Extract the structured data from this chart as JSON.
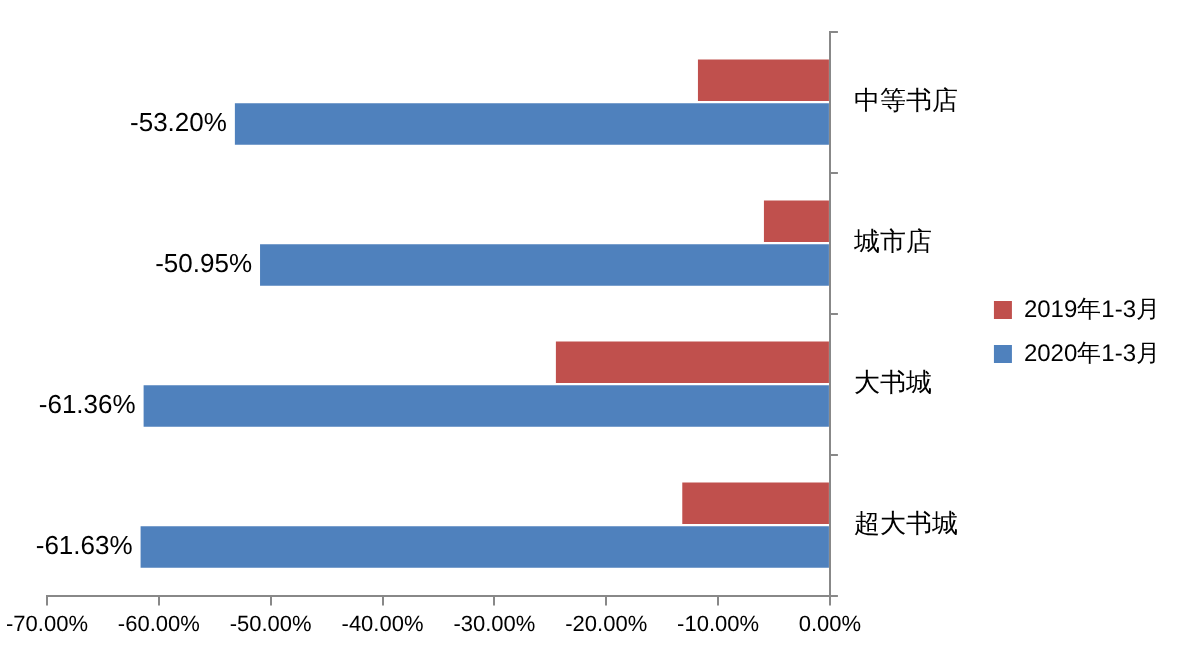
{
  "chart_data": {
    "type": "bar",
    "orientation": "horizontal",
    "categories": [
      "中等书店",
      "城市店",
      "大书城",
      "超大书城"
    ],
    "series": [
      {
        "name": "2019年1-3月",
        "color": "#c0504d",
        "values": [
          -11.8,
          -5.9,
          -24.5,
          -13.2
        ]
      },
      {
        "name": "2020年1-3月",
        "color": "#4f81bd",
        "values": [
          -53.2,
          -50.95,
          -61.36,
          -61.63
        ],
        "value_labels": [
          "-53.20%",
          "-50.95%",
          "-61.36%",
          "-61.63%"
        ]
      }
    ],
    "xlim": [
      -70,
      0
    ],
    "xticks": [
      {
        "value": -70,
        "label": "-70.00%"
      },
      {
        "value": -60,
        "label": "-60.00%"
      },
      {
        "value": -50,
        "label": "-50.00%"
      },
      {
        "value": -40,
        "label": "-40.00%"
      },
      {
        "value": -30,
        "label": "-30.00%"
      },
      {
        "value": -20,
        "label": "-20.00%"
      },
      {
        "value": -10,
        "label": "-10.00%"
      },
      {
        "value": 0,
        "label": "0.00%"
      }
    ],
    "grid": false,
    "legend": "right"
  }
}
